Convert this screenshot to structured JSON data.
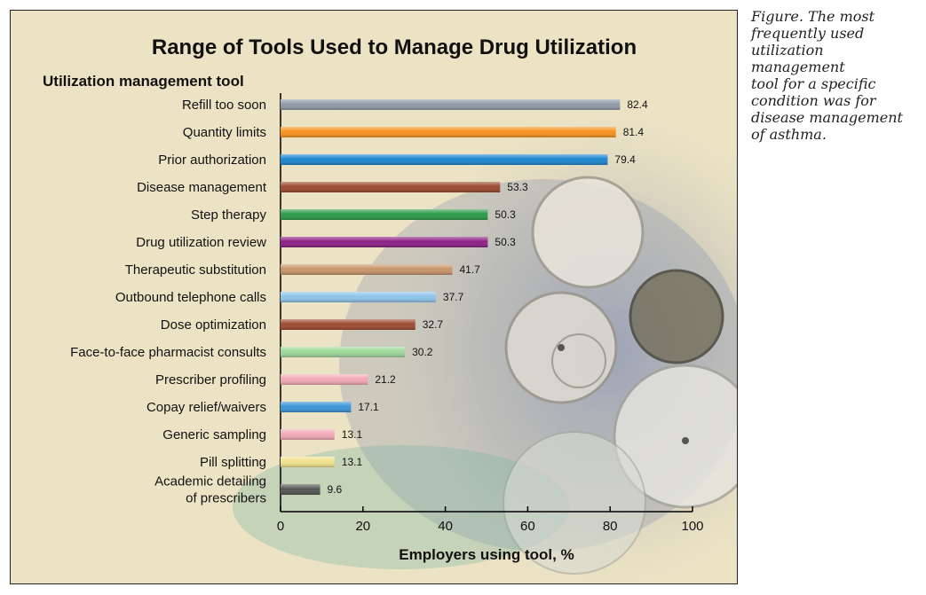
{
  "caption": "Figure. The most\n frequently used\nutilization management\ntool for a specific\ncondition was for\ndisease management\nof asthma.",
  "chart_data": {
    "type": "bar",
    "orientation": "horizontal",
    "title": "Range of Tools Used to Manage Drug Utilization",
    "ylabel": "Utilization management tool",
    "xlabel": "Employers using tool, %",
    "xlim": [
      0,
      100
    ],
    "xticks": [
      0,
      20,
      40,
      60,
      80,
      100
    ],
    "grid": false,
    "categories": [
      "Refill too soon",
      "Quantity limits",
      "Prior authorization",
      "Disease management",
      "Step therapy",
      "Drug utilization review",
      "Therapeutic substitution",
      "Outbound telephone calls",
      "Dose optimization",
      "Face-to-face pharmacist consults",
      "Prescriber profiling",
      "Copay relief/waivers",
      "Generic sampling",
      "Pill splitting",
      "Academic detailing\nof prescribers"
    ],
    "values": [
      82.4,
      81.4,
      79.4,
      53.3,
      50.3,
      50.3,
      41.7,
      37.7,
      32.7,
      30.2,
      21.2,
      17.1,
      13.1,
      13.1,
      9.6
    ],
    "value_labels": [
      "82.4",
      "81.4",
      "79.4",
      "53.3",
      "50.3",
      "50.3",
      "41.7",
      "37.7",
      "32.7",
      "30.2",
      "21.2",
      "17.1",
      "13.1",
      "13.1",
      "9.6"
    ],
    "bar_colors": [
      "#8e9aa6",
      "#f7931e",
      "#1b86d1",
      "#9b4a2f",
      "#2b9a48",
      "#8d1f86",
      "#c8946a",
      "#8ec4ea",
      "#9f4a30",
      "#9fd79a",
      "#f2a8b5",
      "#3a93d6",
      "#f2a8b5",
      "#f1e08a",
      "#555555"
    ]
  }
}
